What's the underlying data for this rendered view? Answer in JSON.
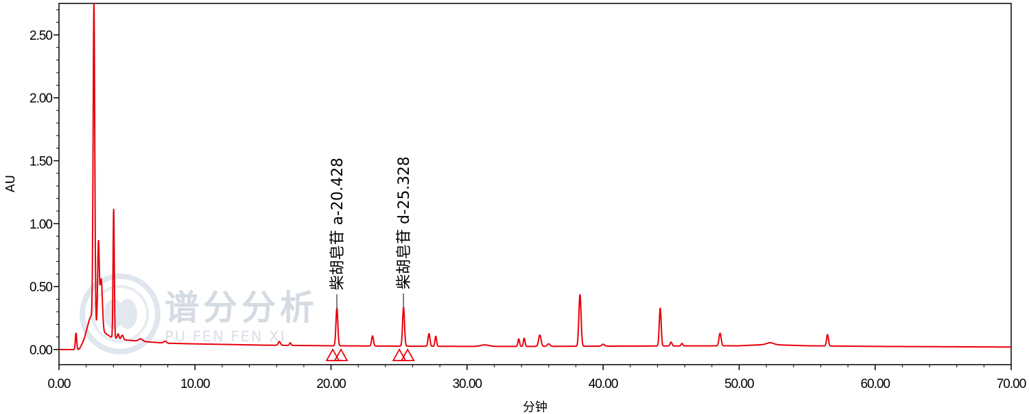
{
  "chart_data": {
    "type": "line",
    "xlabel": "分钟",
    "ylabel": "AU",
    "xlim": [
      0,
      70
    ],
    "ylim": [
      -0.12,
      2.75
    ],
    "x_ticks": [
      "0.00",
      "10.00",
      "20.00",
      "30.00",
      "40.00",
      "50.00",
      "60.00",
      "70.00"
    ],
    "x_tick_values": [
      0,
      10,
      20,
      30,
      40,
      50,
      60,
      70
    ],
    "y_ticks": [
      "0.00",
      "0.50",
      "1.00",
      "1.50",
      "2.00",
      "2.50"
    ],
    "y_tick_values": [
      0,
      0.5,
      1.0,
      1.5,
      2.0,
      2.5
    ],
    "grid": false,
    "line_color": "#e8000b",
    "baseline_points": [
      [
        0,
        0
      ],
      [
        1.4,
        0.0
      ],
      [
        1.5,
        0.005
      ],
      [
        2.0,
        0.1
      ],
      [
        2.4,
        0.15
      ],
      [
        3.4,
        0.13
      ],
      [
        3.8,
        0.1
      ],
      [
        4.5,
        0.08
      ],
      [
        6,
        0.065
      ],
      [
        8,
        0.05
      ],
      [
        10,
        0.045
      ],
      [
        15,
        0.035
      ],
      [
        20,
        0.03
      ],
      [
        25,
        0.027
      ],
      [
        30,
        0.025
      ],
      [
        35,
        0.025
      ],
      [
        40,
        0.027
      ],
      [
        50,
        0.03
      ],
      [
        52,
        0.04
      ],
      [
        55,
        0.03
      ],
      [
        60,
        0.025
      ],
      [
        70,
        0.02
      ]
    ],
    "peaks": [
      {
        "rt": 1.25,
        "height": 0.13,
        "width": 0.05
      },
      {
        "rt": 2.35,
        "height": 0.12,
        "width": 0.25
      },
      {
        "rt": 2.57,
        "height": 2.52,
        "width": 0.06
      },
      {
        "rt": 2.9,
        "height": 0.68,
        "width": 0.06
      },
      {
        "rt": 3.1,
        "height": 0.42,
        "width": 0.09
      },
      {
        "rt": 4.02,
        "height": 1.02,
        "width": 0.045
      },
      {
        "rt": 4.35,
        "height": 0.04,
        "width": 0.06
      },
      {
        "rt": 4.65,
        "height": 0.035,
        "width": 0.08
      },
      {
        "rt": 6.0,
        "height": 0.02,
        "width": 0.15
      },
      {
        "rt": 7.8,
        "height": 0.015,
        "width": 0.1
      },
      {
        "rt": 16.2,
        "height": 0.03,
        "width": 0.08
      },
      {
        "rt": 17.0,
        "height": 0.02,
        "width": 0.06
      },
      {
        "rt": 20.43,
        "height": 0.3,
        "width": 0.07
      },
      {
        "rt": 23.05,
        "height": 0.08,
        "width": 0.07
      },
      {
        "rt": 25.33,
        "height": 0.31,
        "width": 0.07
      },
      {
        "rt": 27.2,
        "height": 0.1,
        "width": 0.07
      },
      {
        "rt": 27.7,
        "height": 0.08,
        "width": 0.06
      },
      {
        "rt": 31.3,
        "height": 0.012,
        "width": 0.3
      },
      {
        "rt": 33.8,
        "height": 0.06,
        "width": 0.06
      },
      {
        "rt": 34.2,
        "height": 0.065,
        "width": 0.06
      },
      {
        "rt": 35.35,
        "height": 0.09,
        "width": 0.09
      },
      {
        "rt": 36.0,
        "height": 0.02,
        "width": 0.1
      },
      {
        "rt": 38.3,
        "height": 0.41,
        "width": 0.08
      },
      {
        "rt": 40.0,
        "height": 0.015,
        "width": 0.1
      },
      {
        "rt": 44.2,
        "height": 0.3,
        "width": 0.07
      },
      {
        "rt": 45.0,
        "height": 0.03,
        "width": 0.07
      },
      {
        "rt": 45.8,
        "height": 0.02,
        "width": 0.06
      },
      {
        "rt": 48.6,
        "height": 0.1,
        "width": 0.08
      },
      {
        "rt": 52.3,
        "height": 0.015,
        "width": 0.25
      },
      {
        "rt": 56.5,
        "height": 0.09,
        "width": 0.07
      }
    ],
    "annotations": [
      {
        "label": "柴胡皂苷 a-20.428",
        "rt": 20.428
      },
      {
        "label": "柴胡皂苷 d-25.328",
        "rt": 25.328
      }
    ]
  },
  "watermark": {
    "cn": "谱分分析",
    "en": "PU FEN FEN XI"
  }
}
